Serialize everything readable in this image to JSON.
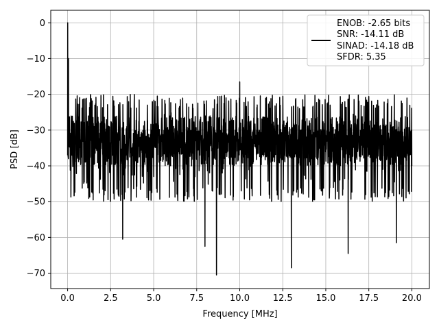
{
  "chart_data": {
    "type": "line",
    "title": "",
    "xlabel": "Frequency [MHz]",
    "ylabel": "PSD [dB]",
    "xlim": [
      -0.98,
      21.02
    ],
    "ylim": [
      -74.3,
      3.5
    ],
    "x_ticks": [
      0.0,
      2.5,
      5.0,
      7.5,
      10.0,
      12.5,
      15.0,
      17.5,
      20.0
    ],
    "x_tick_labels": [
      "0.0",
      "2.5",
      "5.0",
      "7.5",
      "10.0",
      "12.5",
      "15.0",
      "17.5",
      "20.0"
    ],
    "y_ticks": [
      0,
      -10,
      -20,
      -30,
      -40,
      -50,
      -60,
      -70
    ],
    "y_tick_labels": [
      "0",
      "−10",
      "−20",
      "−30",
      "−40",
      "−50",
      "−60",
      "−70"
    ],
    "grid": true,
    "legend_placement": "top-right",
    "line_color": "#000000",
    "series": [
      {
        "name": "",
        "x_range": [
          0.0,
          20.0
        ],
        "peak": {
          "x": 0.0,
          "y": 0.0
        },
        "noise_floor_db": [
          -50,
          -20
        ],
        "notable_dips": [
          {
            "x": 3.2,
            "y": -60.5
          },
          {
            "x": 7.98,
            "y": -62.5
          },
          {
            "x": 8.65,
            "y": -70.5
          },
          {
            "x": 13.0,
            "y": -68.5
          },
          {
            "x": 16.3,
            "y": -64.5
          },
          {
            "x": 19.1,
            "y": -61.5
          }
        ],
        "notable_spikes": [
          {
            "x": 10.0,
            "y": -16.5
          },
          {
            "x": 0.05,
            "y": -10.0
          }
        ]
      }
    ],
    "legend": {
      "lines": [
        "ENOB: -2.65 bits",
        "SNR: -14.11 dB",
        "SINAD: -14.18 dB",
        "SFDR: 5.35"
      ]
    }
  }
}
